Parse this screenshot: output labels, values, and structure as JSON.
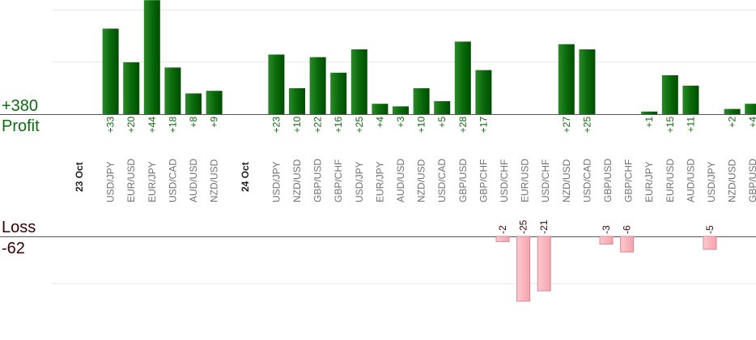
{
  "summary": {
    "total_profit": "+380",
    "profit_label": "Profit",
    "loss_label": "Loss",
    "total_loss": "-62"
  },
  "colors": {
    "profit_bar": "#0a6a0a",
    "profit_bar_light": "#2a8a2a",
    "profit_value_text": "#0e6b0e",
    "loss_bar": "#f7b3bb",
    "loss_bar_border": "#d98892",
    "loss_value_text": "#3a0000",
    "label_text": "#707070",
    "date_text": "#222222"
  },
  "chart_data": {
    "type": "bar",
    "title": "",
    "xlabel": "",
    "ylabel": "",
    "grid": true,
    "groups": [
      {
        "date": "23 Oct",
        "trades": [
          {
            "pair": "USD/JPY",
            "value": 33,
            "label": "+33"
          },
          {
            "pair": "EUR/USD",
            "value": 20,
            "label": "+20"
          },
          {
            "pair": "EUR/JPY",
            "value": 44,
            "label": "+44"
          },
          {
            "pair": "USD/CAD",
            "value": 18,
            "label": "+18"
          },
          {
            "pair": "AUD/USD",
            "value": 8,
            "label": "+8"
          },
          {
            "pair": "NZD/USD",
            "value": 9,
            "label": "+9"
          }
        ]
      },
      {
        "date": "24 Oct",
        "trades": [
          {
            "pair": "USD/JPY",
            "value": 23,
            "label": "+23"
          },
          {
            "pair": "NZD/USD",
            "value": 10,
            "label": "+10"
          },
          {
            "pair": "GBP/USD",
            "value": 22,
            "label": "+22"
          },
          {
            "pair": "GBP/CHF",
            "value": 16,
            "label": "+16"
          },
          {
            "pair": "USD/JPY",
            "value": 25,
            "label": "+25"
          },
          {
            "pair": "EUR/JPY",
            "value": 4,
            "label": "+4"
          },
          {
            "pair": "AUD/USD",
            "value": 3,
            "label": "+3"
          },
          {
            "pair": "NZD/USD",
            "value": 10,
            "label": "+10"
          },
          {
            "pair": "USD/CAD",
            "value": 5,
            "label": "+5"
          },
          {
            "pair": "GBP/USD",
            "value": 28,
            "label": "+28"
          },
          {
            "pair": "GBP/CHF",
            "value": 17,
            "label": "+17"
          },
          {
            "pair": "USD/CHF",
            "value": -2,
            "label": "-2"
          },
          {
            "pair": "EUR/USD",
            "value": -25,
            "label": "-25"
          },
          {
            "pair": "USD/CHF",
            "value": -21,
            "label": "-21"
          },
          {
            "pair": "NZD/USD",
            "value": 27,
            "label": "+27"
          },
          {
            "pair": "USD/CAD",
            "value": 25,
            "label": "+25"
          },
          {
            "pair": "GBP/USD",
            "value": -3,
            "label": "-3"
          },
          {
            "pair": "GBP/CHF",
            "value": -6,
            "label": "-6"
          },
          {
            "pair": "EUR/JPY",
            "value": 1,
            "label": "+1"
          },
          {
            "pair": "EUR/USD",
            "value": 15,
            "label": "+15"
          },
          {
            "pair": "AUD/USD",
            "value": 11,
            "label": "+11"
          },
          {
            "pair": "USD/JPY",
            "value": -5,
            "label": "-5"
          },
          {
            "pair": "NZD/USD",
            "value": 2,
            "label": "+2"
          },
          {
            "pair": "GBP/USD",
            "value": 4,
            "label": "+4"
          }
        ]
      }
    ]
  }
}
